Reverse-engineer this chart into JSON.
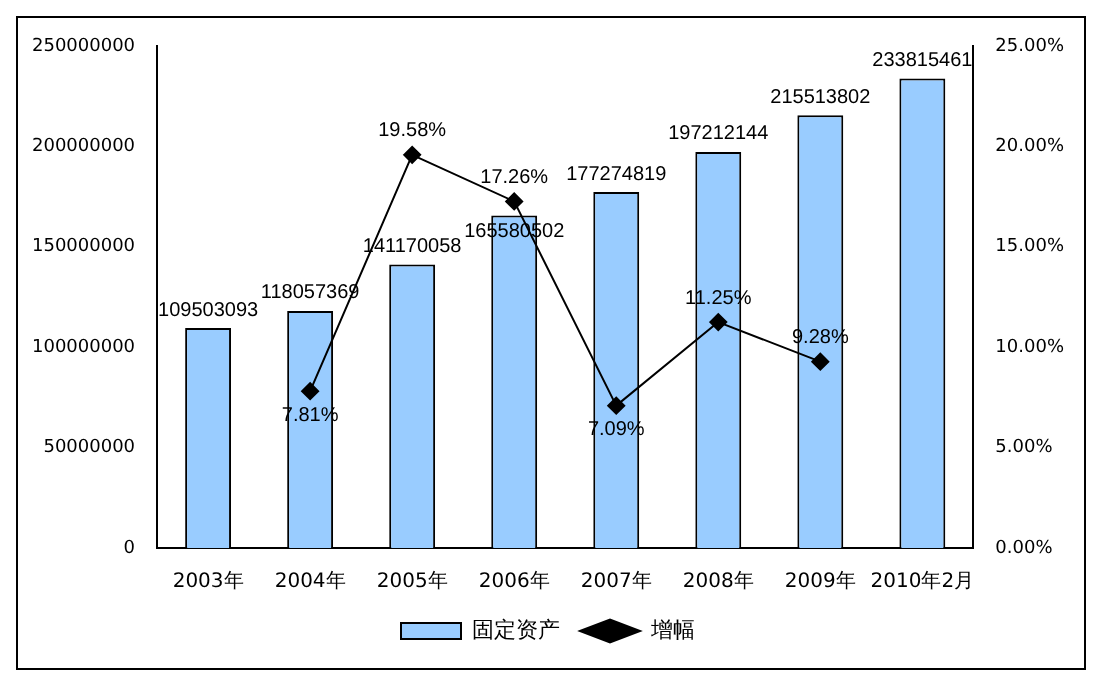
{
  "chart_data": {
    "type": "bar",
    "categories": [
      "2003年",
      "2004年",
      "2005年",
      "2006年",
      "2007年",
      "2008年",
      "2009年",
      "2010年2月"
    ],
    "series": [
      {
        "name": "固定资产",
        "color": "#99ccff",
        "values": [
          109503093,
          118057369,
          141170058,
          165580502,
          177274819,
          197212144,
          215513802,
          233815461
        ],
        "value_labels": [
          "109503093",
          "118057369",
          "141170058",
          "165580502",
          "177274819",
          "197212144",
          "215513802",
          "233815461"
        ]
      },
      {
        "name": "增幅",
        "type": "line",
        "axis": "y2",
        "color": "#000000",
        "marker": "diamond",
        "values": [
          null,
          7.81,
          19.58,
          17.26,
          7.09,
          11.25,
          9.28,
          null
        ],
        "value_labels": [
          null,
          "7.81%",
          "19.58%",
          "17.26%",
          "7.09%",
          "11.25%",
          "9.28%",
          null
        ]
      }
    ],
    "ylim": [
      0,
      250000000
    ],
    "yticks": [
      0,
      50000000,
      100000000,
      150000000,
      200000000,
      250000000
    ],
    "y2lim": [
      0,
      25
    ],
    "y2ticks": [
      {
        "value": 0,
        "label": "0.00%"
      },
      {
        "value": 5,
        "label": "5.00%"
      },
      {
        "value": 10,
        "label": "10.00%"
      },
      {
        "value": 15,
        "label": "15.00%"
      },
      {
        "value": 20,
        "label": "20.00%"
      },
      {
        "value": 25,
        "label": "25.00%"
      }
    ],
    "grid": false,
    "legend": "bottom"
  }
}
